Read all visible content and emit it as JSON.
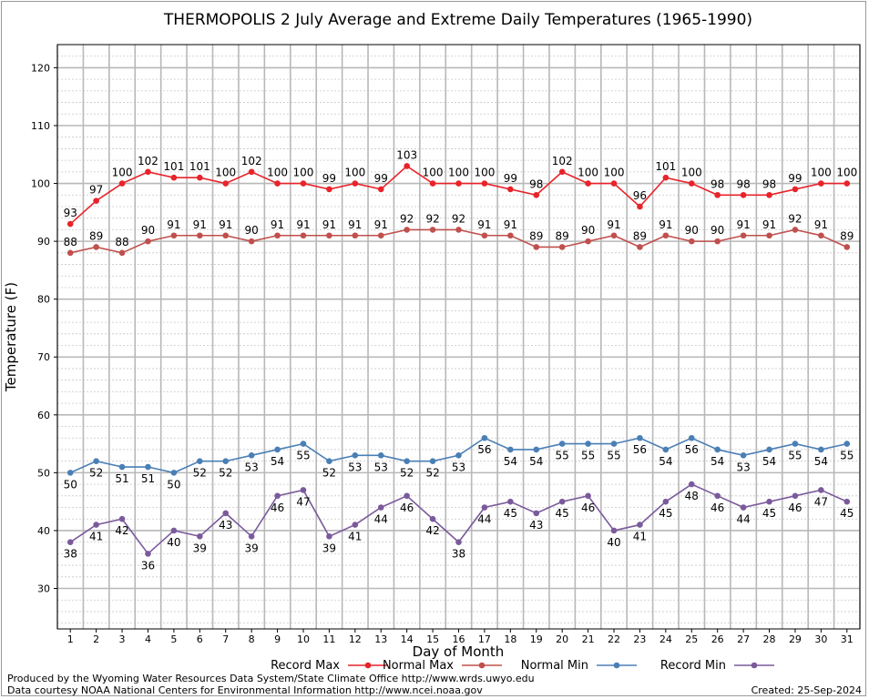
{
  "chart_data": {
    "type": "line",
    "title": "THERMOPOLIS 2 July Average and Extreme Daily Temperatures (1965-1990)",
    "xlabel": "Day of Month",
    "ylabel": "Temperature (F)",
    "ylim": [
      23,
      124
    ],
    "y_ticks": [
      30,
      40,
      50,
      60,
      70,
      80,
      90,
      100,
      110,
      120
    ],
    "x": [
      1,
      2,
      3,
      4,
      5,
      6,
      7,
      8,
      9,
      10,
      11,
      12,
      13,
      14,
      15,
      16,
      17,
      18,
      19,
      20,
      21,
      22,
      23,
      24,
      25,
      26,
      27,
      28,
      29,
      30,
      31
    ],
    "grid": true,
    "legend_position": "bottom",
    "series": [
      {
        "name": "Record Max",
        "color": "#e8232a",
        "label_position": "above",
        "values": [
          93,
          97,
          100,
          102,
          101,
          101,
          100,
          102,
          100,
          100,
          99,
          100,
          99,
          103,
          100,
          100,
          100,
          99,
          98,
          102,
          100,
          100,
          96,
          101,
          100,
          98,
          98,
          98,
          99,
          100,
          100
        ]
      },
      {
        "name": "Normal Max",
        "color": "#c0504d",
        "label_position": "above",
        "values": [
          88,
          89,
          88,
          90,
          91,
          91,
          91,
          90,
          91,
          91,
          91,
          91,
          91,
          92,
          92,
          92,
          91,
          91,
          89,
          89,
          90,
          91,
          89,
          91,
          90,
          90,
          91,
          91,
          92,
          91,
          89
        ]
      },
      {
        "name": "Normal Min",
        "color": "#4a7fb5",
        "label_position": "below",
        "values": [
          50,
          52,
          51,
          51,
          50,
          52,
          52,
          53,
          54,
          55,
          52,
          53,
          53,
          52,
          52,
          53,
          56,
          54,
          54,
          55,
          55,
          55,
          56,
          54,
          56,
          54,
          53,
          54,
          55,
          54,
          55
        ]
      },
      {
        "name": "Record Min",
        "color": "#7b5a9c",
        "label_position": "below",
        "values": [
          38,
          41,
          42,
          36,
          40,
          39,
          43,
          39,
          46,
          47,
          39,
          41,
          44,
          46,
          42,
          38,
          44,
          45,
          43,
          45,
          46,
          40,
          41,
          45,
          48,
          46,
          44,
          45,
          46,
          47,
          45
        ]
      }
    ]
  },
  "footer": {
    "produced_by": "Produced by the Wyoming Water Resources Data System/State Climate Office http://www.wrds.uwyo.edu",
    "data_courtesy": "Data courtesy NOAA National Centers for Environmental Information http://www.ncei.noaa.gov",
    "created": "Created:  25-Sep-2024"
  }
}
